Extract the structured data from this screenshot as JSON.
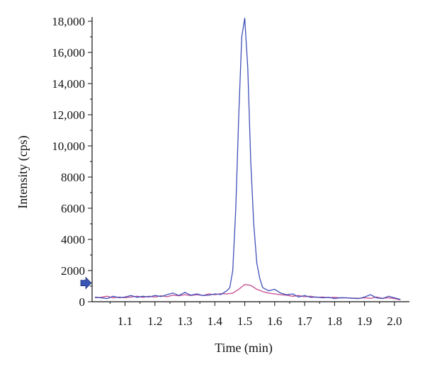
{
  "chart_data": {
    "type": "line",
    "title": "",
    "xlabel": "Time (min)",
    "ylabel": "Intensity (cps)",
    "xlim": [
      0.99,
      2.05
    ],
    "ylim": [
      0,
      18000
    ],
    "x_ticks": [
      1.1,
      1.2,
      1.3,
      1.4,
      1.5,
      1.6,
      1.7,
      1.8,
      1.9,
      2.0
    ],
    "x_tick_labels": [
      "1.1",
      "1.2",
      "1.3",
      "1.4",
      "1.5",
      "1.6",
      "1.7",
      "1.8",
      "1.9",
      "2.0"
    ],
    "y_ticks": [
      0,
      2000,
      4000,
      6000,
      8000,
      10000,
      12000,
      14000,
      16000,
      18000
    ],
    "y_tick_labels": [
      "0",
      "2000",
      "4000",
      "6000",
      "8000",
      "10,000",
      "12,000",
      "14,000",
      "16,000",
      "18,000"
    ],
    "grid": false,
    "legend": "none",
    "baseline_marker": {
      "y": 1200,
      "color": "#3a55b4",
      "icon": "arrow-right-icon"
    },
    "series": [
      {
        "color": "#3f4fb8",
        "points": [
          [
            1.0,
            300
          ],
          [
            1.02,
            250
          ],
          [
            1.04,
            200
          ],
          [
            1.06,
            350
          ],
          [
            1.08,
            260
          ],
          [
            1.1,
            300
          ],
          [
            1.12,
            400
          ],
          [
            1.14,
            280
          ],
          [
            1.16,
            350
          ],
          [
            1.18,
            300
          ],
          [
            1.2,
            400
          ],
          [
            1.22,
            330
          ],
          [
            1.24,
            450
          ],
          [
            1.26,
            560
          ],
          [
            1.28,
            400
          ],
          [
            1.3,
            600
          ],
          [
            1.32,
            420
          ],
          [
            1.34,
            500
          ],
          [
            1.36,
            400
          ],
          [
            1.38,
            420
          ],
          [
            1.4,
            500
          ],
          [
            1.42,
            460
          ],
          [
            1.44,
            700
          ],
          [
            1.45,
            900
          ],
          [
            1.46,
            2000
          ],
          [
            1.47,
            6000
          ],
          [
            1.48,
            12000
          ],
          [
            1.49,
            17000
          ],
          [
            1.5,
            18200
          ],
          [
            1.51,
            15000
          ],
          [
            1.52,
            9000
          ],
          [
            1.53,
            5000
          ],
          [
            1.54,
            2500
          ],
          [
            1.55,
            1500
          ],
          [
            1.56,
            900
          ],
          [
            1.58,
            700
          ],
          [
            1.6,
            800
          ],
          [
            1.62,
            550
          ],
          [
            1.64,
            450
          ],
          [
            1.66,
            500
          ],
          [
            1.68,
            300
          ],
          [
            1.7,
            400
          ],
          [
            1.72,
            280
          ],
          [
            1.74,
            300
          ],
          [
            1.76,
            250
          ],
          [
            1.78,
            280
          ],
          [
            1.8,
            200
          ],
          [
            1.82,
            260
          ],
          [
            1.84,
            250
          ],
          [
            1.86,
            220
          ],
          [
            1.88,
            200
          ],
          [
            1.9,
            300
          ],
          [
            1.92,
            450
          ],
          [
            1.94,
            250
          ],
          [
            1.96,
            200
          ],
          [
            1.98,
            350
          ],
          [
            2.0,
            250
          ],
          [
            2.02,
            150
          ]
        ]
      },
      {
        "color": "#c2488f",
        "points": [
          [
            1.0,
            250
          ],
          [
            1.02,
            280
          ],
          [
            1.04,
            350
          ],
          [
            1.06,
            250
          ],
          [
            1.08,
            300
          ],
          [
            1.1,
            260
          ],
          [
            1.12,
            300
          ],
          [
            1.14,
            350
          ],
          [
            1.16,
            280
          ],
          [
            1.18,
            350
          ],
          [
            1.2,
            300
          ],
          [
            1.22,
            380
          ],
          [
            1.24,
            320
          ],
          [
            1.26,
            420
          ],
          [
            1.28,
            380
          ],
          [
            1.3,
            450
          ],
          [
            1.32,
            400
          ],
          [
            1.34,
            450
          ],
          [
            1.36,
            400
          ],
          [
            1.38,
            500
          ],
          [
            1.4,
            450
          ],
          [
            1.42,
            520
          ],
          [
            1.44,
            500
          ],
          [
            1.46,
            550
          ],
          [
            1.48,
            800
          ],
          [
            1.5,
            1100
          ],
          [
            1.52,
            1050
          ],
          [
            1.54,
            800
          ],
          [
            1.56,
            650
          ],
          [
            1.58,
            550
          ],
          [
            1.6,
            500
          ],
          [
            1.62,
            450
          ],
          [
            1.64,
            420
          ],
          [
            1.66,
            350
          ],
          [
            1.68,
            400
          ],
          [
            1.7,
            320
          ],
          [
            1.72,
            350
          ],
          [
            1.74,
            280
          ],
          [
            1.76,
            300
          ],
          [
            1.78,
            260
          ],
          [
            1.8,
            280
          ],
          [
            1.82,
            240
          ],
          [
            1.84,
            250
          ],
          [
            1.86,
            230
          ],
          [
            1.88,
            220
          ],
          [
            1.9,
            250
          ],
          [
            1.92,
            220
          ],
          [
            1.94,
            300
          ],
          [
            1.96,
            220
          ],
          [
            1.98,
            250
          ],
          [
            2.0,
            200
          ],
          [
            2.02,
            120
          ]
        ]
      }
    ]
  }
}
